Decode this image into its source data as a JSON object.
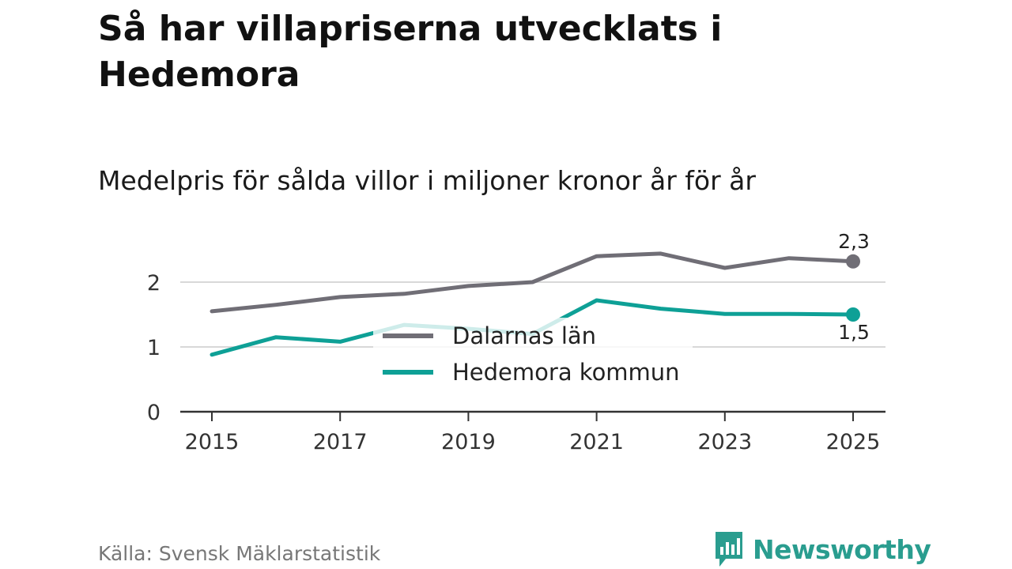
{
  "title": "Så har villapriserna utvecklats i Hedemora",
  "subtitle": "Medelpris för sålda villor i miljoner kronor år för år",
  "source": "Källa: Svensk Mäklarstatistik",
  "brand": {
    "name": "Newsworthy",
    "icon": "newsworthy-chart-icon"
  },
  "colors": {
    "dalarna": "#706e76",
    "hedemora": "#0ea096",
    "grid": "#d8d8d8",
    "axis": "#333333",
    "brand": "#2a9d8f"
  },
  "chart_data": {
    "type": "line",
    "title": "Medelpris för sålda villor i miljoner kronor år för år",
    "xlabel": "",
    "ylabel": "",
    "x": [
      2015,
      2016,
      2017,
      2018,
      2019,
      2020,
      2021,
      2022,
      2023,
      2024,
      2025
    ],
    "xticks": [
      "2015",
      "2017",
      "2019",
      "2021",
      "2023",
      "2025"
    ],
    "yticks": [
      "0",
      "1",
      "2"
    ],
    "ylim": [
      0,
      2.5
    ],
    "grid": true,
    "legend": "center",
    "series": [
      {
        "name": "Dalarnas län",
        "values": [
          1.55,
          1.65,
          1.77,
          1.82,
          1.94,
          2.0,
          2.4,
          2.44,
          2.22,
          2.37,
          2.32
        ],
        "end_label": "2,3"
      },
      {
        "name": "Hedemora kommun",
        "values": [
          0.88,
          1.15,
          1.08,
          1.34,
          1.28,
          1.2,
          1.72,
          1.59,
          1.51,
          1.51,
          1.5
        ],
        "end_label": "1,5"
      }
    ]
  }
}
